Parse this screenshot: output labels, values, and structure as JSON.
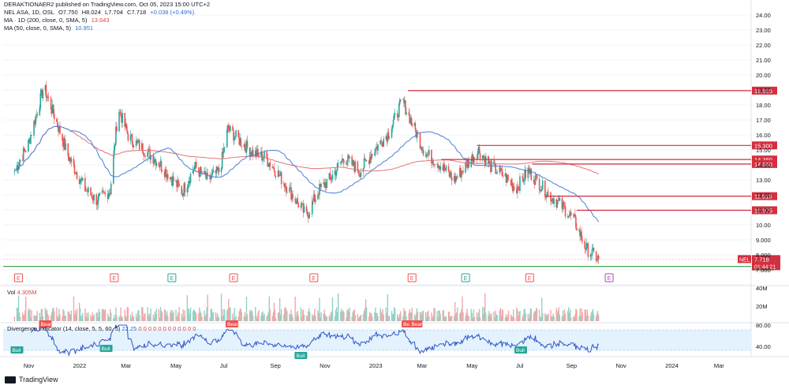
{
  "header": {
    "published": "DERAKTIONAER2 published on TradingView.com, Oct 05, 2023 15:00 UTC+2",
    "symbol_line": "NEL ASA, 1D, OSL",
    "open": "O7.750",
    "high": "H8.024",
    "low": "L7.704",
    "close": "C7.718",
    "change": "+0.038 (+0.49%)",
    "ma200_label": "MA · 1D (200, close, 0, SMA, 5)",
    "ma200_value": "13.643",
    "ma50_label": "MA (50, close, 0, SMA, 5)",
    "ma50_value": "10.951"
  },
  "volume": {
    "label": "Vol",
    "value": "4.305M"
  },
  "divergence": {
    "label": "Divergence Indicator (14, close, 5, 5, 60, 5)",
    "value": "22.25",
    "zeros": "0 0 0 0 0 0 0 0 0 0 0 0"
  },
  "brand": "TradingView",
  "colors": {
    "up": "#26a69a",
    "down": "#ef5350",
    "ma200": "#e57373",
    "ma50": "#4a7fd8",
    "level": "#d32f3f",
    "support": "#2e9e3f",
    "osc": "#2f55c9"
  },
  "chart_data": {
    "type": "candlestick",
    "symbol": "NEL",
    "price_axis": {
      "ticks": [
        "24.00",
        "23.00",
        "22.00",
        "21.00",
        "20.00",
        "19.00",
        "18.00",
        "17.00",
        "16.00",
        "15.00",
        "14.00",
        "13.00",
        "12.00",
        "11.00",
        "10.00",
        "9.000",
        "8.000",
        "7.000",
        "6.000"
      ],
      "range": [
        6.0,
        24.0
      ]
    },
    "time_axis": [
      "Nov",
      "2022",
      "Mar",
      "May",
      "Jul",
      "Sep",
      "Nov",
      "2023",
      "Mar",
      "May",
      "Jul",
      "Sep",
      "Nov",
      "2024",
      "Mar"
    ],
    "resistance_levels": [
      {
        "label": "18.955",
        "value": 18.955
      },
      {
        "label": "15.300",
        "value": 15.3
      },
      {
        "label": "14.360",
        "value": 14.36
      },
      {
        "label": "14.060",
        "value": 14.06
      },
      {
        "label": "11.915",
        "value": 11.915
      },
      {
        "label": "10.975",
        "value": 10.975
      }
    ],
    "support_level": {
      "label": "7.226",
      "value": 7.226
    },
    "last_price": {
      "symbol": "NEL",
      "price": "7.718",
      "countdown": "01:44:21"
    },
    "earnings_markers": [
      "E",
      "E",
      "E",
      "E",
      "E",
      "E",
      "E",
      "E",
      "E",
      "E"
    ],
    "close_path": [
      [
        "2021-10-15",
        13.6
      ],
      [
        "2021-11-01",
        15.4
      ],
      [
        "2021-11-20",
        19.2
      ],
      [
        "2021-12-05",
        17.0
      ],
      [
        "2021-12-20",
        14.6
      ],
      [
        "2022-01-10",
        12.4
      ],
      [
        "2022-01-25",
        11.6
      ],
      [
        "2022-02-10",
        12.3
      ],
      [
        "2022-02-20",
        17.8
      ],
      [
        "2022-03-05",
        15.8
      ],
      [
        "2022-03-20",
        15.2
      ],
      [
        "2022-04-10",
        14.2
      ],
      [
        "2022-04-25",
        13.2
      ],
      [
        "2022-05-10",
        12.2
      ],
      [
        "2022-05-25",
        13.9
      ],
      [
        "2022-06-10",
        13.0
      ],
      [
        "2022-06-25",
        13.6
      ],
      [
        "2022-07-05",
        16.4
      ],
      [
        "2022-07-20",
        15.6
      ],
      [
        "2022-08-05",
        14.8
      ],
      [
        "2022-08-20",
        14.5
      ],
      [
        "2022-09-05",
        13.4
      ],
      [
        "2022-09-25",
        11.8
      ],
      [
        "2022-10-10",
        10.6
      ],
      [
        "2022-10-25",
        12.3
      ],
      [
        "2022-11-10",
        13.2
      ],
      [
        "2022-11-25",
        14.5
      ],
      [
        "2022-12-15",
        13.6
      ],
      [
        "2022-12-31",
        14.9
      ],
      [
        "2023-01-20",
        16.2
      ],
      [
        "2023-02-05",
        18.3
      ],
      [
        "2023-02-20",
        16.4
      ],
      [
        "2023-03-05",
        14.8
      ],
      [
        "2023-03-20",
        14.2
      ],
      [
        "2023-04-10",
        13.0
      ],
      [
        "2023-04-25",
        14.0
      ],
      [
        "2023-05-10",
        15.0
      ],
      [
        "2023-05-25",
        13.9
      ],
      [
        "2023-06-10",
        13.3
      ],
      [
        "2023-06-25",
        12.4
      ],
      [
        "2023-07-10",
        13.6
      ],
      [
        "2023-07-20",
        13.0
      ],
      [
        "2023-08-05",
        12.0
      ],
      [
        "2023-08-20",
        11.3
      ],
      [
        "2023-09-05",
        10.3
      ],
      [
        "2023-09-20",
        8.4
      ],
      [
        "2023-10-05",
        7.72
      ]
    ],
    "volume_axis": {
      "ticks": [
        "40M",
        "20M"
      ]
    },
    "oscillator_axis": {
      "ticks": [
        "80.00",
        "40.00"
      ]
    },
    "oscillator_labels": {
      "bull": "Bull",
      "bear": "Bear"
    }
  }
}
